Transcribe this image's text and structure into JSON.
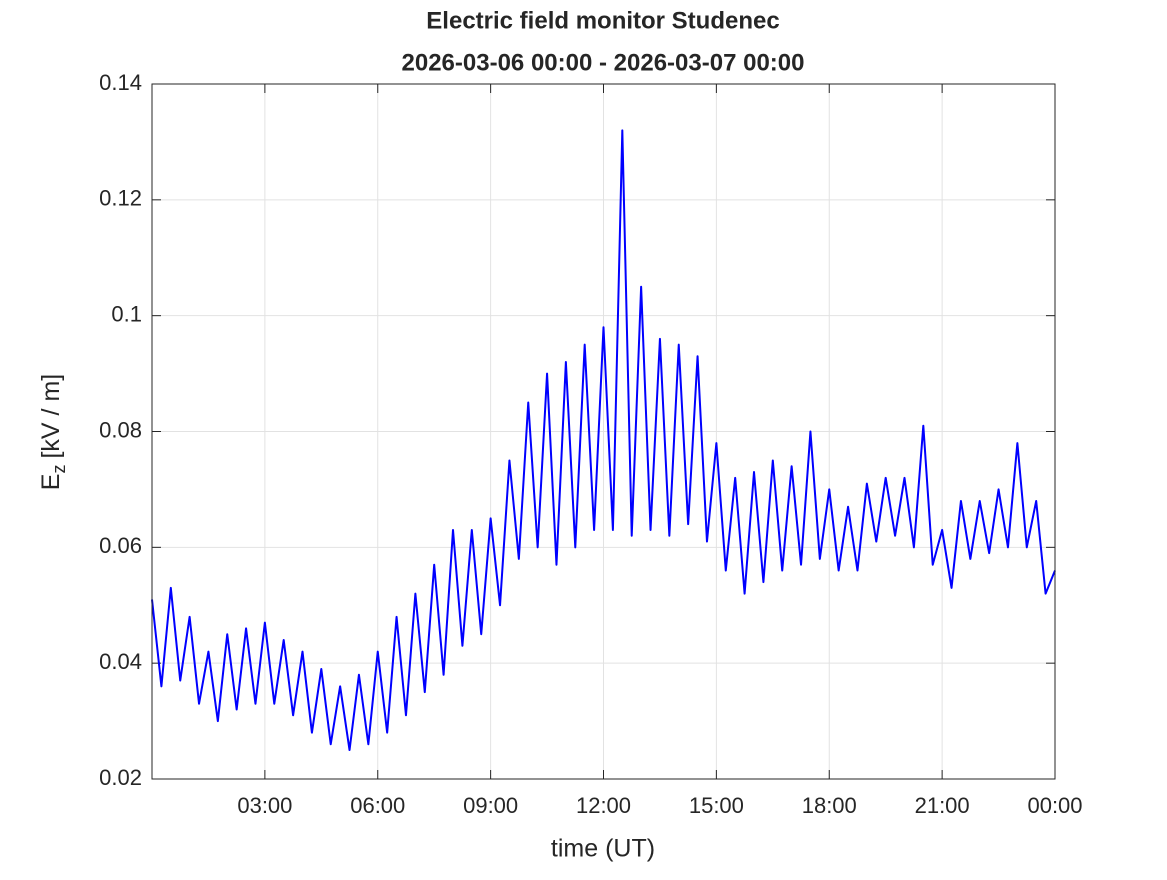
{
  "chart_data": {
    "type": "line",
    "title": [
      "Electric field monitor Studenec",
      "2026-03-06 00:00 - 2026-03-07 00:00"
    ],
    "xlabel": "time (UT)",
    "ylabel": [
      "E",
      "z",
      "[kV / m]"
    ],
    "x": [
      0,
      0.25,
      0.5,
      0.75,
      1,
      1.25,
      1.5,
      1.75,
      2,
      2.25,
      2.5,
      2.75,
      3,
      3.25,
      3.5,
      3.75,
      4,
      4.25,
      4.5,
      4.75,
      5,
      5.25,
      5.5,
      5.75,
      6,
      6.25,
      6.5,
      6.75,
      7,
      7.25,
      7.5,
      7.75,
      8,
      8.25,
      8.5,
      8.75,
      9,
      9.25,
      9.5,
      9.75,
      10,
      10.25,
      10.5,
      10.75,
      11,
      11.25,
      11.5,
      11.75,
      12,
      12.25,
      12.5,
      12.75,
      13,
      13.25,
      13.5,
      13.75,
      14,
      14.25,
      14.5,
      14.75,
      15,
      15.25,
      15.5,
      15.75,
      16,
      16.25,
      16.5,
      16.75,
      17,
      17.25,
      17.5,
      17.75,
      18,
      18.25,
      18.5,
      18.75,
      19,
      19.25,
      19.5,
      19.75,
      20,
      20.25,
      20.5,
      20.75,
      21,
      21.25,
      21.5,
      21.75,
      22,
      22.25,
      22.5,
      22.75,
      23,
      23.25,
      23.5,
      23.75,
      24
    ],
    "series": [
      {
        "color": "#0000ff",
        "values": [
          0.051,
          0.036,
          0.053,
          0.037,
          0.048,
          0.033,
          0.042,
          0.03,
          0.045,
          0.032,
          0.046,
          0.033,
          0.047,
          0.033,
          0.044,
          0.031,
          0.042,
          0.028,
          0.039,
          0.026,
          0.036,
          0.025,
          0.038,
          0.026,
          0.042,
          0.028,
          0.048,
          0.031,
          0.052,
          0.035,
          0.057,
          0.038,
          0.063,
          0.043,
          0.063,
          0.045,
          0.065,
          0.05,
          0.075,
          0.058,
          0.085,
          0.06,
          0.09,
          0.057,
          0.092,
          0.06,
          0.095,
          0.063,
          0.098,
          0.063,
          0.132,
          0.062,
          0.105,
          0.063,
          0.096,
          0.062,
          0.095,
          0.064,
          0.093,
          0.061,
          0.078,
          0.056,
          0.072,
          0.052,
          0.073,
          0.054,
          0.075,
          0.056,
          0.074,
          0.057,
          0.08,
          0.058,
          0.07,
          0.056,
          0.067,
          0.056,
          0.071,
          0.061,
          0.072,
          0.062,
          0.072,
          0.06,
          0.081,
          0.057,
          0.063,
          0.053,
          0.068,
          0.058,
          0.068,
          0.059,
          0.07,
          0.06,
          0.078,
          0.06,
          0.068,
          0.052,
          0.056
        ]
      }
    ],
    "xlim": [
      0,
      24
    ],
    "xticks": [
      {
        "value": 3,
        "label": "03:00"
      },
      {
        "value": 6,
        "label": "06:00"
      },
      {
        "value": 9,
        "label": "09:00"
      },
      {
        "value": 12,
        "label": "12:00"
      },
      {
        "value": 15,
        "label": "15:00"
      },
      {
        "value": 18,
        "label": "18:00"
      },
      {
        "value": 21,
        "label": "21:00"
      },
      {
        "value": 24,
        "label": "00:00"
      }
    ],
    "ylim": [
      0.02,
      0.14
    ],
    "yticks": [
      0.02,
      0.04,
      0.06,
      0.08,
      0.1,
      0.12,
      0.14
    ],
    "grid": true
  }
}
